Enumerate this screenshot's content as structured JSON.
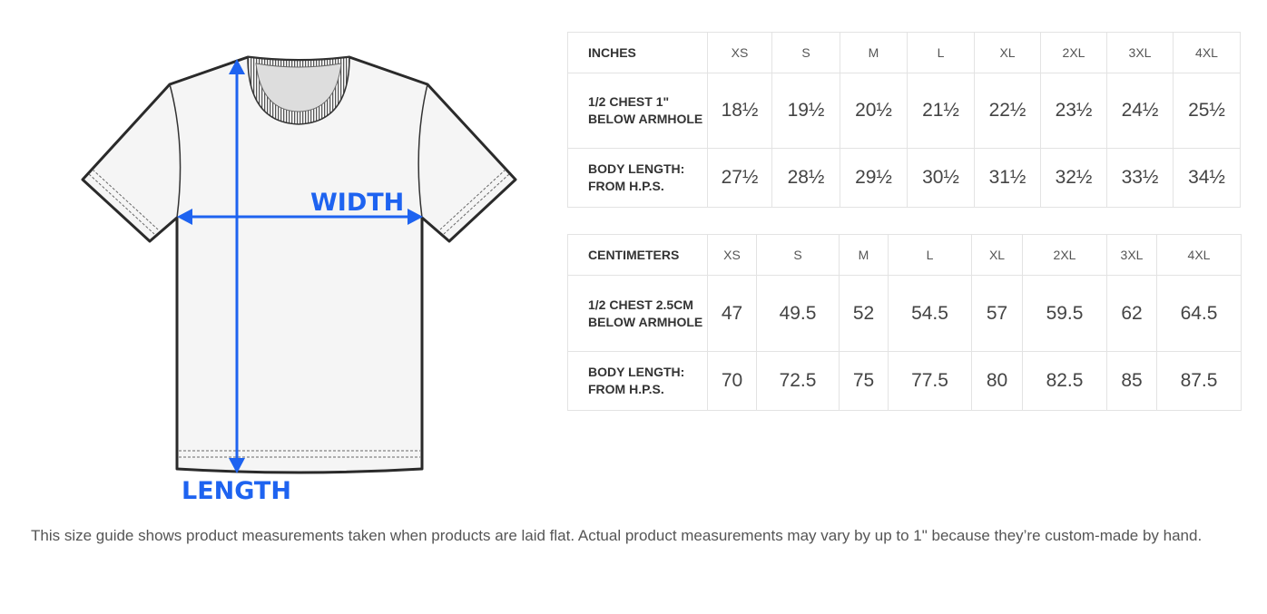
{
  "diagram": {
    "width_label": "WIDTH",
    "length_label": "LENGTH",
    "accent": "#1e63f0"
  },
  "inches": {
    "header": "INCHES",
    "sizes": [
      "XS",
      "S",
      "M",
      "L",
      "XL",
      "2XL",
      "3XL",
      "4XL"
    ],
    "rows": [
      {
        "label": "1/2 CHEST 1\" BELOW ARMHOLE",
        "values": [
          "18½",
          "19½",
          "20½",
          "21½",
          "22½",
          "23½",
          "24½",
          "25½"
        ]
      },
      {
        "label": "BODY LENGTH: FROM H.P.S.",
        "values": [
          "27½",
          "28½",
          "29½",
          "30½",
          "31½",
          "32½",
          "33½",
          "34½"
        ]
      }
    ]
  },
  "centimeters": {
    "header": "CENTIMETERS",
    "sizes": [
      "XS",
      "S",
      "M",
      "L",
      "XL",
      "2XL",
      "3XL",
      "4XL"
    ],
    "rows": [
      {
        "label": "1/2 CHEST 2.5CM BELOW ARMHOLE",
        "values": [
          "47",
          "49.5",
          "52",
          "54.5",
          "57",
          "59.5",
          "62",
          "64.5"
        ]
      },
      {
        "label": "BODY LENGTH: FROM H.P.S.",
        "values": [
          "70",
          "72.5",
          "75",
          "77.5",
          "80",
          "82.5",
          "85",
          "87.5"
        ]
      }
    ]
  },
  "caption": "This size guide shows product measurements taken when products are laid flat. Actual product measurements may vary by up to 1\" because they’re custom-made by hand."
}
